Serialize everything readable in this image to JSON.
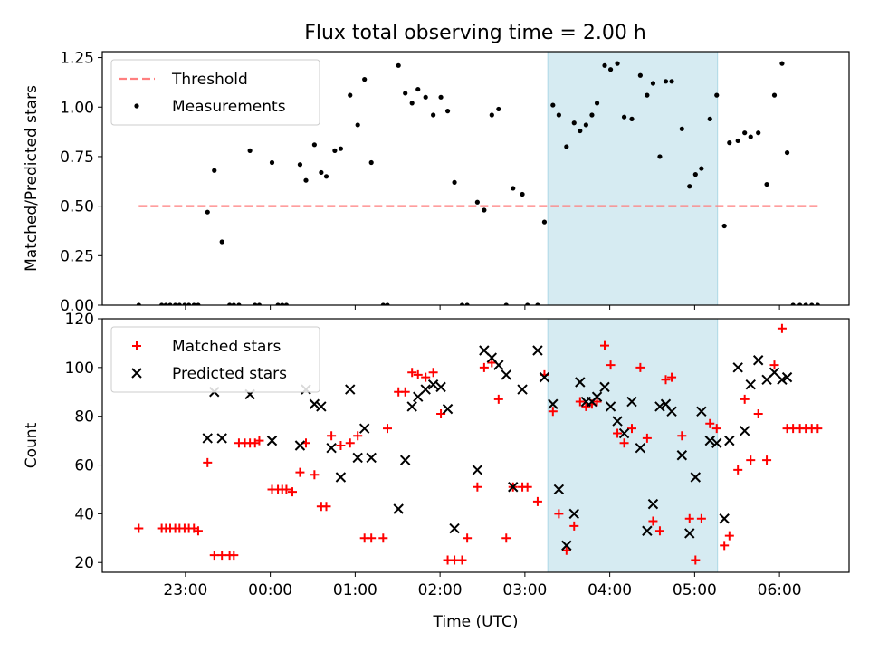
{
  "figure_title": "Flux total observing time = 2.00 h",
  "chart_data": [
    {
      "type": "scatter",
      "title": "Flux total observing time = 2.00 h",
      "xlabel": "",
      "ylabel": "Matched/Predicted stars",
      "xlim": [
        -1.98,
        6.82
      ],
      "ylim": [
        0,
        1.28
      ],
      "yticks": [
        0,
        0.25,
        0.5,
        0.75,
        1.0,
        1.25
      ],
      "ytick_labels": [
        "0.00",
        "0.25",
        "0.50",
        "0.75",
        "1.00",
        "1.25"
      ],
      "shaded_span": [
        3.27,
        5.27
      ],
      "legend": {
        "position": "top-left",
        "entries": [
          "Threshold",
          "Measurements"
        ]
      },
      "threshold": {
        "name": "Threshold",
        "y": 0.5,
        "x": [
          -1.55,
          6.45
        ],
        "color": "#ff7f7f"
      },
      "series": [
        {
          "name": "Measurements",
          "color": "#000000",
          "x": [
            -1.55,
            -1.28,
            -1.23,
            -1.18,
            -1.12,
            -1.07,
            -1.01,
            -0.96,
            -0.9,
            -0.85,
            -0.74,
            -0.66,
            -0.57,
            -0.48,
            -0.43,
            -0.37,
            -0.24,
            -0.18,
            -0.13,
            0.02,
            0.09,
            0.14,
            0.19,
            0.35,
            0.42,
            0.52,
            0.6,
            0.66,
            0.76,
            0.83,
            0.94,
            1.03,
            1.11,
            1.19,
            1.33,
            1.38,
            1.51,
            1.59,
            1.67,
            1.74,
            1.83,
            1.92,
            2.01,
            2.09,
            2.17,
            2.26,
            2.32,
            2.44,
            2.52,
            2.61,
            2.69,
            2.78,
            2.86,
            2.97,
            3.03,
            3.15,
            3.23,
            3.33,
            3.4,
            3.49,
            3.58,
            3.65,
            3.72,
            3.79,
            3.85,
            3.94,
            4.01,
            4.09,
            4.17,
            4.26,
            4.36,
            4.44,
            4.51,
            4.59,
            4.66,
            4.73,
            4.85,
            4.94,
            5.01,
            5.08,
            5.18,
            5.26,
            5.35,
            5.41,
            5.51,
            5.59,
            5.66,
            5.75,
            5.85,
            5.94,
            6.03,
            6.09,
            6.16,
            6.24,
            6.31,
            6.38,
            6.45
          ],
          "y": [
            0,
            0,
            0,
            0,
            0,
            0,
            0,
            0,
            0,
            0,
            0.47,
            0.68,
            0.32,
            0,
            0,
            0,
            0.78,
            0,
            0,
            0.72,
            0,
            0,
            0,
            0.71,
            0.63,
            0.81,
            0.67,
            0.65,
            0.78,
            0.79,
            1.06,
            0.91,
            1.14,
            0.72,
            0,
            0,
            1.21,
            1.07,
            1.02,
            1.09,
            1.05,
            0.96,
            1.05,
            0.98,
            0.62,
            0,
            0,
            0.52,
            0.48,
            0.96,
            0.99,
            0,
            0.59,
            0.56,
            0,
            0,
            0.42,
            1.01,
            0.96,
            0.8,
            0.92,
            0.88,
            0.91,
            0.96,
            1.02,
            1.21,
            1.19,
            1.22,
            0.95,
            0.94,
            1.16,
            1.06,
            1.12,
            0.75,
            1.13,
            1.13,
            0.89,
            0.6,
            0.66,
            0.69,
            0.94,
            1.06,
            0.4,
            0.82,
            0.83,
            0.87,
            0.85,
            0.87,
            0.61,
            1.06,
            1.22,
            0.77,
            0,
            0,
            0,
            0,
            0
          ]
        }
      ]
    },
    {
      "type": "scatter",
      "title": "",
      "xlabel": "Time (UTC)",
      "ylabel": "Count",
      "xlim": [
        -1.98,
        6.82
      ],
      "ylim": [
        16,
        120
      ],
      "yticks": [
        20,
        40,
        60,
        80,
        100,
        120
      ],
      "ytick_labels": [
        "20",
        "40",
        "60",
        "80",
        "100",
        "120"
      ],
      "xticks": [
        -1,
        0,
        1,
        2,
        3,
        4,
        5,
        6
      ],
      "xtick_labels": [
        "23:00",
        "00:00",
        "01:00",
        "02:00",
        "03:00",
        "04:00",
        "05:00",
        "06:00"
      ],
      "shaded_span": [
        3.27,
        5.27
      ],
      "legend": {
        "position": "top-left",
        "entries": [
          "Matched stars",
          "Predicted stars"
        ]
      },
      "series": [
        {
          "name": "Matched stars",
          "marker": "plus",
          "color": "#ff0000",
          "x": [
            -1.55,
            -1.28,
            -1.23,
            -1.18,
            -1.12,
            -1.07,
            -1.01,
            -0.96,
            -0.9,
            -0.85,
            -0.74,
            -0.66,
            -0.57,
            -0.48,
            -0.43,
            -0.37,
            -0.3,
            -0.24,
            -0.18,
            -0.13,
            0.02,
            0.09,
            0.14,
            0.19,
            0.26,
            0.35,
            0.42,
            0.52,
            0.6,
            0.66,
            0.72,
            0.83,
            0.94,
            1.03,
            1.11,
            1.19,
            1.33,
            1.38,
            1.51,
            1.59,
            1.67,
            1.74,
            1.83,
            1.92,
            2.01,
            2.09,
            2.17,
            2.26,
            2.32,
            2.44,
            2.52,
            2.61,
            2.69,
            2.78,
            2.86,
            2.97,
            3.03,
            3.15,
            3.23,
            3.33,
            3.4,
            3.49,
            3.58,
            3.65,
            3.72,
            3.79,
            3.85,
            3.94,
            4.01,
            4.09,
            4.17,
            4.26,
            4.36,
            4.44,
            4.51,
            4.59,
            4.66,
            4.73,
            4.85,
            4.94,
            5.01,
            5.08,
            5.18,
            5.26,
            5.35,
            5.41,
            5.51,
            5.59,
            5.66,
            5.75,
            5.85,
            5.94,
            6.03,
            6.09,
            6.16,
            6.24,
            6.31,
            6.38,
            6.45
          ],
          "y": [
            34,
            34,
            34,
            34,
            34,
            34,
            34,
            34,
            34,
            33,
            61,
            23,
            23,
            23,
            23,
            69,
            69,
            69,
            69,
            70,
            50,
            50,
            50,
            50,
            49,
            57,
            69,
            56,
            43,
            43,
            72,
            68,
            69,
            72,
            30,
            30,
            30,
            75,
            90,
            90,
            98,
            97,
            96,
            98,
            81,
            21,
            21,
            21,
            30,
            51,
            100,
            102,
            87,
            30,
            51,
            51,
            51,
            45,
            97,
            82,
            40,
            25,
            35,
            86,
            84,
            85,
            86,
            109,
            101,
            73,
            69,
            75,
            100,
            71,
            37,
            33,
            95,
            96,
            72,
            38,
            21,
            38,
            77,
            75,
            27,
            31,
            58,
            87,
            62,
            81,
            62,
            101,
            116,
            75,
            75,
            75,
            75,
            75,
            75
          ]
        },
        {
          "name": "Predicted stars",
          "marker": "x",
          "color": "#000000",
          "x": [
            -0.74,
            -0.66,
            -0.57,
            -0.24,
            0.02,
            0.35,
            0.42,
            0.52,
            0.6,
            0.72,
            0.83,
            0.94,
            1.03,
            1.11,
            1.19,
            1.51,
            1.59,
            1.67,
            1.74,
            1.83,
            1.92,
            2.01,
            2.09,
            2.17,
            2.44,
            2.52,
            2.61,
            2.69,
            2.78,
            2.86,
            2.97,
            3.15,
            3.23,
            3.33,
            3.4,
            3.49,
            3.58,
            3.65,
            3.72,
            3.79,
            3.85,
            3.94,
            4.01,
            4.09,
            4.17,
            4.26,
            4.36,
            4.44,
            4.51,
            4.59,
            4.66,
            4.73,
            4.85,
            4.94,
            5.01,
            5.08,
            5.18,
            5.26,
            5.35,
            5.41,
            5.51,
            5.59,
            5.66,
            5.75,
            5.85,
            5.94,
            6.03,
            6.09
          ],
          "y": [
            71,
            90,
            71,
            89,
            70,
            68,
            91,
            85,
            84,
            67,
            55,
            91,
            63,
            75,
            63,
            42,
            62,
            84,
            88,
            91,
            93,
            92,
            83,
            34,
            58,
            107,
            104,
            101,
            97,
            51,
            91,
            107,
            96,
            85,
            50,
            27,
            40,
            94,
            86,
            86,
            88,
            92,
            84,
            78,
            73,
            86,
            67,
            33,
            44,
            84,
            85,
            82,
            64,
            32,
            55,
            82,
            70,
            69,
            38,
            70,
            100,
            74,
            93,
            103,
            95,
            98,
            95,
            96
          ]
        }
      ]
    }
  ]
}
